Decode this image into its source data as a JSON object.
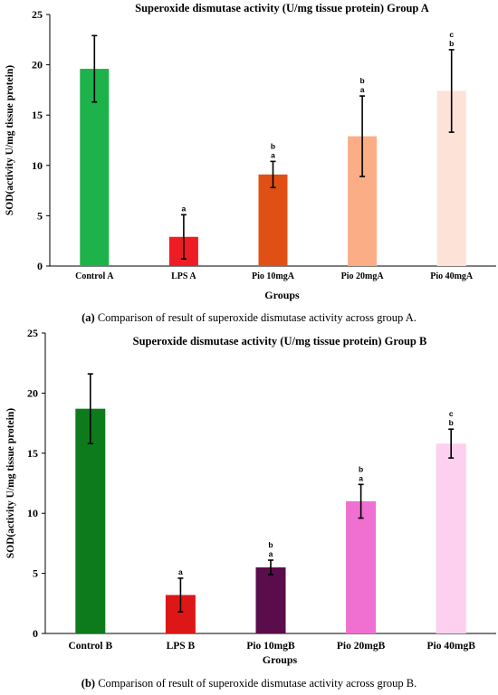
{
  "captions": [
    {
      "label": "(a)",
      "text": " Comparison of result of superoxide dismutase activity across group A."
    },
    {
      "label": "(b)",
      "text": " Comparison of result of superoxide dismutase activity across group B."
    }
  ],
  "chart_data": [
    {
      "type": "bar",
      "title": "Superoxide dismutase activity  (U/mg tissue protein) Group A",
      "xlabel": "Groups",
      "ylabel": "SOD(activity  U/mg tissue protein)",
      "ylim": [
        0,
        25
      ],
      "yticks": [
        "0",
        "5",
        "10",
        "15",
        "20",
        "25"
      ],
      "categories": [
        "Control  A",
        "LPS A",
        "Pio 10mgA",
        "Pio 20mgA",
        "Pio 40mgA"
      ],
      "values": [
        19.6,
        2.9,
        9.1,
        12.9,
        17.4
      ],
      "errors": [
        3.3,
        2.2,
        1.3,
        4.0,
        4.1
      ],
      "letters": [
        [],
        [
          "a"
        ],
        [
          "b",
          "a"
        ],
        [
          "b",
          "a"
        ],
        [
          "c",
          "b"
        ]
      ],
      "colors": [
        "#1db24a",
        "#ee1c24",
        "#e05014",
        "#fbad86",
        "#fde2d8"
      ],
      "grid": false
    },
    {
      "type": "bar",
      "title": "Superoxide dismutase activity  (U/mg tissue protein) Group B",
      "xlabel": "Groups",
      "ylabel": "SOD(activity  U/mg tissue protein)",
      "ylim": [
        0,
        25
      ],
      "yticks": [
        "0",
        "5",
        "10",
        "15",
        "20",
        "25"
      ],
      "categories": [
        "Control B",
        "LPS B",
        "Pio 10mgB",
        "Pio 20mgB",
        "Pio 40mgB"
      ],
      "values": [
        18.7,
        3.2,
        5.5,
        11.0,
        15.8
      ],
      "errors": [
        2.9,
        1.4,
        0.6,
        1.4,
        1.2
      ],
      "letters": [
        [],
        [
          "a"
        ],
        [
          "b",
          "a"
        ],
        [
          "b",
          "a"
        ],
        [
          "c",
          "b"
        ]
      ],
      "colors": [
        "#0d7a1c",
        "#dd1717",
        "#5a0d4a",
        "#f070d2",
        "#fdd0ef"
      ],
      "grid": false
    }
  ]
}
